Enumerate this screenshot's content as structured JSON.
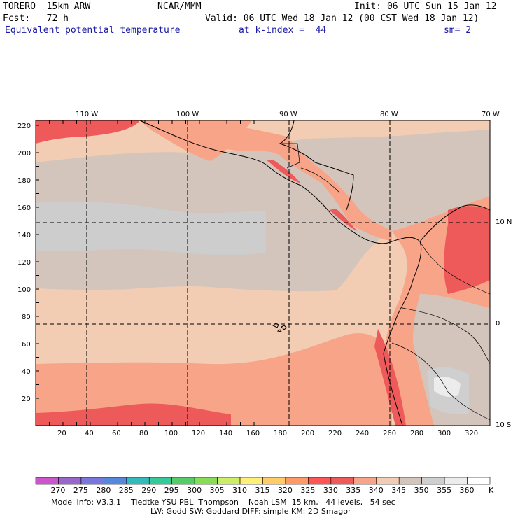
{
  "header": {
    "model": "TORERO  15km ARW",
    "center": "NCAR/MMM",
    "init": "Init: 06 UTC Sun 15 Jan 12",
    "fcst": "Fcst:   72 h",
    "valid": "Valid: 06 UTC Wed 18 Jan 12 (00 CST Wed 18 Jan 12)",
    "field": "Equivalent potential temperature",
    "level": "at k-index =  44",
    "smooth": "sm= 2"
  },
  "map": {
    "lon_labels": [
      "110 W",
      "100 W",
      "90 W",
      "80 W",
      "70 W"
    ],
    "lat_labels": [
      "10 N",
      "0",
      "10 S"
    ],
    "y_ticks": [
      "220",
      "200",
      "180",
      "160",
      "140",
      "120",
      "100",
      "80",
      "60",
      "40",
      "20"
    ],
    "x_ticks": [
      "20",
      "40",
      "60",
      "80",
      "100",
      "120",
      "140",
      "160",
      "180",
      "200",
      "220",
      "240",
      "260",
      "280",
      "300",
      "320"
    ]
  },
  "colorbar": {
    "levels": [
      "270",
      "275",
      "280",
      "285",
      "290",
      "295",
      "300",
      "305",
      "310",
      "315",
      "320",
      "325",
      "330",
      "335",
      "340",
      "345",
      "350",
      "355",
      "360"
    ],
    "unit": "K",
    "colors": [
      "#cc55cc",
      "#9966cc",
      "#7777dd",
      "#5588dd",
      "#33bbbb",
      "#33cc99",
      "#55cc66",
      "#88dd55",
      "#ccee66",
      "#ffee77",
      "#ffcc66",
      "#ff9966",
      "#ff5555",
      "#ee5a5a",
      "#f7a488",
      "#f2cdb4",
      "#d3c5bc",
      "#cfcfcf",
      "#ececec",
      "#ffffff"
    ]
  },
  "footer": {
    "line1": "Model Info: V3.3.1    Tiedtke YSU PBL  Thompson    Noah LSM  15 km,   44 levels,   54 sec",
    "line2": "LW: Godd SW: Goddard DIFF: simple KM: 2D Smagor"
  }
}
